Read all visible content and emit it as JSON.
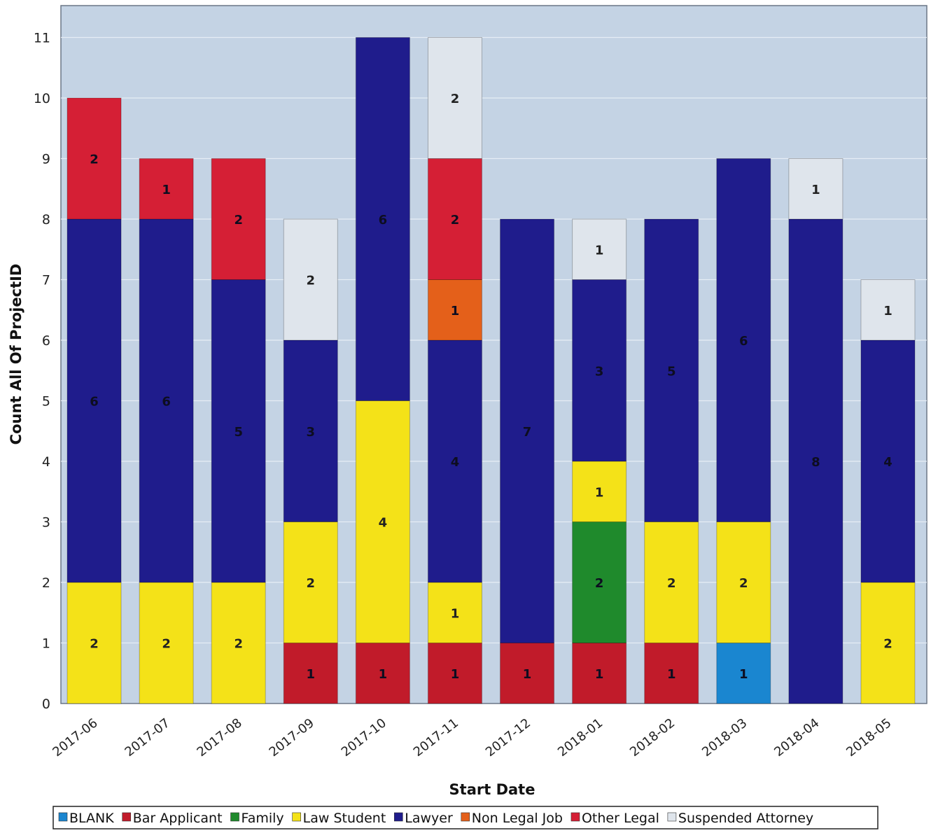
{
  "chart_data": {
    "type": "bar",
    "stacked": true,
    "xlabel": "Start Date",
    "ylabel": "Count All Of ProjectID",
    "ylim": [
      0,
      11
    ],
    "yticks": [
      0,
      1,
      2,
      3,
      4,
      5,
      6,
      7,
      8,
      9,
      10,
      11
    ],
    "grid": true,
    "legend_position": "bottom",
    "categories": [
      "2017-06",
      "2017-07",
      "2017-08",
      "2017-09",
      "2017-10",
      "2017-11",
      "2017-12",
      "2018-01",
      "2018-02",
      "2018-03",
      "2018-04",
      "2018-05"
    ],
    "series": [
      {
        "name": "BLANK",
        "color": "#1a86d0",
        "values": [
          0,
          0,
          0,
          0,
          0,
          0,
          0,
          0,
          0,
          1,
          0,
          0
        ]
      },
      {
        "name": "Bar Applicant",
        "color": "#c11b2a",
        "values": [
          0,
          0,
          0,
          1,
          1,
          1,
          1,
          1,
          1,
          0,
          0,
          0
        ]
      },
      {
        "name": "Family",
        "color": "#1f8a2c",
        "values": [
          0,
          0,
          0,
          0,
          0,
          0,
          0,
          2,
          0,
          0,
          0,
          0
        ]
      },
      {
        "name": "Law Student",
        "color": "#f4e218",
        "values": [
          2,
          2,
          2,
          2,
          4,
          1,
          0,
          1,
          2,
          2,
          0,
          2
        ]
      },
      {
        "name": "Lawyer",
        "color": "#1f1c8c",
        "values": [
          6,
          6,
          5,
          3,
          6,
          4,
          7,
          3,
          5,
          6,
          8,
          4
        ]
      },
      {
        "name": "Non Legal Job",
        "color": "#e4601a",
        "values": [
          0,
          0,
          0,
          0,
          0,
          1,
          0,
          0,
          0,
          0,
          0,
          0
        ]
      },
      {
        "name": "Other Legal",
        "color": "#d51f35",
        "values": [
          2,
          1,
          2,
          0,
          0,
          2,
          0,
          0,
          0,
          0,
          0,
          0
        ]
      },
      {
        "name": "Suspended Attorney",
        "color": "#dfe5ec",
        "values": [
          0,
          0,
          0,
          2,
          0,
          2,
          0,
          1,
          0,
          0,
          1,
          1
        ]
      }
    ]
  }
}
